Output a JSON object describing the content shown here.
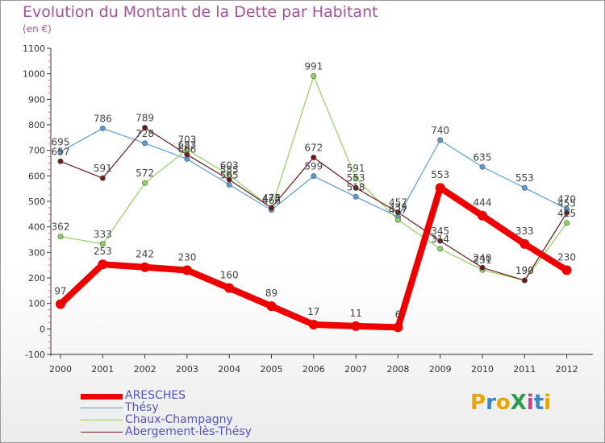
{
  "page": {
    "title": "Evolution du Montant de la Dette par Habitant",
    "unit_label": "(en €)",
    "brand": "ProXiti",
    "brand_colors": [
      "#e8a400",
      "#3a87c8",
      "#e8a400",
      "#2a9d4a",
      "#d03a8c",
      "#3a87c8",
      "#e8a400"
    ]
  },
  "chart_data": {
    "type": "line",
    "title": "Evolution du Montant de la Dette par Habitant",
    "ylabel": "(en €)",
    "xlabel": "",
    "ylim": [
      -100,
      1100
    ],
    "yticks": [
      -100,
      0,
      100,
      200,
      300,
      400,
      500,
      600,
      700,
      800,
      900,
      1000,
      1100
    ],
    "x": [
      "2000",
      "2001",
      "2002",
      "2003",
      "2004",
      "2005",
      "2006",
      "2007",
      "2008",
      "2009",
      "2010",
      "2011",
      "2012"
    ],
    "grid": false,
    "legend_position": "bottom-left",
    "series": [
      {
        "name": "Thésy",
        "color": "#5b9bd5",
        "values": [
          695,
          786,
          728,
          666,
          565,
          466,
          599,
          518,
          439,
          740,
          635,
          553,
          470
        ]
      },
      {
        "name": "Chaux-Champagny",
        "color": "#8ed35a",
        "values": [
          362,
          333,
          572,
          703,
          603,
          473,
          991,
          591,
          427,
          314,
          231,
          190,
          415
        ]
      },
      {
        "name": "Abergement-lès-Thésy",
        "color": "#6b1a1a",
        "values": [
          657,
          591,
          789,
          683,
          585,
          475,
          672,
          553,
          457,
          345,
          240,
          190,
          455
        ]
      },
      {
        "name": "ARESCHES",
        "color": "#ee0000",
        "values": [
          97,
          253,
          242,
          230,
          160,
          89,
          17,
          11,
          6,
          553,
          444,
          333,
          230
        ]
      }
    ]
  }
}
